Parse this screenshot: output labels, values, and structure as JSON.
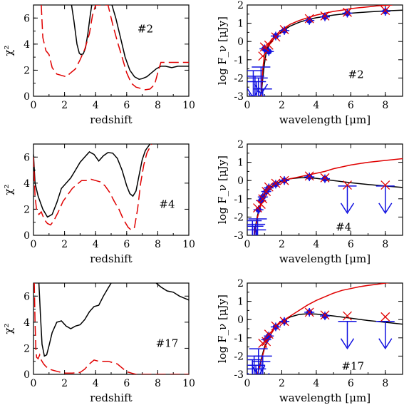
{
  "chart_data": [
    {
      "type": "line",
      "panel": "top-left",
      "object_label": "#2",
      "xlabel": "redshift",
      "ylabel": "χ²",
      "xlim": [
        0,
        10
      ],
      "ylim": [
        0,
        7
      ],
      "xticks": [
        0,
        2,
        4,
        6,
        8,
        10
      ],
      "yticks": [
        0,
        2,
        4,
        6
      ],
      "series": [
        {
          "color": "#000000",
          "style": "solid",
          "x": [
            2.45,
            2.6,
            2.8,
            2.95,
            3.05,
            3.2,
            3.35,
            3.5,
            3.65,
            3.75
          ],
          "y": [
            7.0,
            5.8,
            4.0,
            3.3,
            3.2,
            3.25,
            3.7,
            4.8,
            6.2,
            7.0
          ],
          "x2": [
            5.05,
            5.3,
            5.6,
            5.9,
            6.2,
            6.5,
            6.8,
            7.0,
            7.3,
            7.6,
            7.9,
            8.2,
            8.5,
            8.9,
            9.3,
            9.7,
            10.0
          ],
          "y2": [
            7.0,
            6.0,
            4.5,
            3.0,
            2.0,
            1.5,
            1.3,
            1.35,
            1.5,
            1.8,
            2.1,
            2.3,
            2.3,
            2.2,
            2.3,
            2.3,
            2.3
          ]
        },
        {
          "color": "#e00000",
          "style": "dashed",
          "x": [
            0.5,
            0.6,
            0.8,
            1.0,
            1.2,
            1.5,
            1.8,
            2.1,
            2.4,
            2.7,
            3.0,
            3.3,
            3.6,
            3.8,
            4.0,
            4.4,
            4.8,
            5.1,
            5.4,
            5.7,
            6.0,
            6.3,
            6.6,
            6.9,
            7.2,
            7.5,
            7.8,
            8.0,
            8.2,
            8.5,
            9.0,
            9.5,
            10.0
          ],
          "y": [
            7.0,
            4.5,
            3.5,
            3.2,
            2.2,
            1.7,
            1.6,
            1.5,
            1.8,
            2.1,
            2.8,
            3.6,
            4.8,
            6.2,
            7.0,
            7.0,
            7.0,
            5.5,
            4.2,
            3.0,
            1.8,
            1.0,
            0.7,
            0.6,
            0.5,
            0.55,
            0.9,
            1.8,
            2.6,
            2.6,
            2.6,
            2.6,
            2.6
          ]
        }
      ]
    },
    {
      "type": "scatter",
      "panel": "top-right",
      "object_label": "#2",
      "xlabel": "wavelength [μm]",
      "ylabel": "log F_ν [μJy]",
      "xlim": [
        0,
        9
      ],
      "ylim": [
        -3,
        2
      ],
      "xticks": [
        0,
        2,
        4,
        6,
        8
      ],
      "yticks": [
        -3,
        -2,
        -1,
        0,
        1,
        2
      ],
      "observed": {
        "x": [
          1.0,
          1.25,
          1.65,
          2.15,
          3.6,
          4.5,
          5.8,
          8.0
        ],
        "y": [
          -0.4,
          -0.55,
          0.3,
          0.6,
          1.15,
          1.35,
          1.55,
          1.65
        ]
      },
      "upper_limits": {
        "x": [
          0.35,
          0.45,
          0.55,
          0.65,
          0.8,
          0.9
        ],
        "y": [
          -1.6,
          -1.9,
          -2.2,
          -2.0,
          -1.4,
          -2.6
        ]
      },
      "model_points": {
        "x": [
          0.9,
          1.0,
          1.25,
          1.65,
          2.15,
          3.6,
          4.5,
          5.8,
          8.0
        ],
        "y": [
          -0.8,
          -0.3,
          -0.2,
          0.25,
          0.65,
          1.25,
          1.4,
          1.6,
          1.7
        ]
      },
      "series": [
        {
          "color": "#000000",
          "style": "solid",
          "x": [
            0.8,
            0.9,
            1.0,
            1.1,
            1.2,
            1.4,
            1.7,
            2.0,
            2.5,
            3.0,
            3.5,
            4.0,
            5.0,
            6.0,
            7.0,
            8.0,
            9.0
          ],
          "y": [
            -3.0,
            -2.0,
            -1.2,
            -0.6,
            -0.3,
            0.0,
            0.3,
            0.55,
            0.85,
            1.05,
            1.2,
            1.3,
            1.45,
            1.55,
            1.62,
            1.68,
            1.72
          ]
        },
        {
          "color": "#e00000",
          "style": "solid",
          "x": [
            0.8,
            0.9,
            1.0,
            1.1,
            1.2,
            1.4,
            1.7,
            2.0,
            2.5,
            3.0,
            3.5,
            4.0,
            4.5,
            5.0,
            5.5,
            6.0,
            6.5,
            7.0,
            7.5,
            8.0,
            8.4
          ],
          "y": [
            -3.0,
            -1.5,
            -0.7,
            -0.4,
            -0.2,
            0.1,
            0.4,
            0.65,
            0.95,
            1.15,
            1.3,
            1.45,
            1.55,
            1.65,
            1.72,
            1.8,
            1.85,
            1.9,
            1.95,
            1.98,
            2.0
          ]
        }
      ]
    },
    {
      "type": "line",
      "panel": "middle-left",
      "object_label": "#4",
      "xlabel": "redshift",
      "ylabel": "χ²",
      "xlim": [
        0,
        10
      ],
      "ylim": [
        0,
        7
      ],
      "xticks": [
        0,
        2,
        4,
        6,
        8,
        10
      ],
      "yticks": [
        0,
        2,
        4,
        6
      ],
      "series": [
        {
          "color": "#000000",
          "style": "solid",
          "x": [
            0.0,
            0.1,
            0.3,
            0.6,
            0.9,
            1.2,
            1.5,
            1.8,
            2.1,
            2.4,
            2.7,
            3.0,
            3.3,
            3.6,
            3.9,
            4.2,
            4.5,
            4.8,
            5.1,
            5.4,
            5.7,
            6.0,
            6.2,
            6.4,
            6.6,
            6.8,
            7.0,
            7.2,
            7.5
          ],
          "y": [
            6.2,
            4.0,
            3.0,
            2.0,
            1.4,
            1.6,
            2.5,
            3.6,
            4.0,
            4.4,
            5.0,
            5.6,
            6.0,
            6.4,
            6.2,
            5.7,
            6.1,
            6.35,
            6.3,
            5.9,
            5.0,
            3.8,
            3.2,
            3.0,
            3.4,
            4.6,
            5.8,
            6.5,
            7.0
          ]
        },
        {
          "color": "#e00000",
          "style": "dashed",
          "x": [
            0.0,
            0.1,
            0.2,
            0.35,
            0.5,
            0.7,
            0.9,
            1.1,
            1.3,
            1.6,
            1.9,
            2.2,
            2.5,
            2.8,
            3.1,
            3.4,
            3.7,
            4.0,
            4.3,
            4.6,
            4.9,
            5.2,
            5.5,
            5.8,
            6.1,
            6.3,
            6.5,
            6.7,
            6.9,
            7.1,
            7.3,
            7.6
          ],
          "y": [
            6.0,
            3.0,
            1.9,
            1.6,
            1.8,
            1.2,
            0.9,
            0.8,
            1.1,
            1.8,
            2.6,
            3.1,
            3.6,
            3.9,
            4.2,
            4.2,
            4.3,
            4.2,
            4.1,
            3.8,
            3.3,
            2.6,
            2.0,
            1.2,
            0.6,
            0.4,
            0.6,
            2.0,
            4.0,
            5.4,
            6.3,
            7.0
          ]
        }
      ]
    },
    {
      "type": "scatter",
      "panel": "middle-right",
      "object_label": "#4",
      "xlabel": "wavelength [μm]",
      "ylabel": "log F_ν [μJy]",
      "xlim": [
        0,
        9
      ],
      "ylim": [
        -3,
        2
      ],
      "xticks": [
        0,
        2,
        4,
        6,
        8
      ],
      "yticks": [
        -3,
        -2,
        -1,
        0,
        1,
        2
      ],
      "observed": {
        "x": [
          0.65,
          0.8,
          0.9,
          1.1,
          1.25,
          1.65,
          2.15,
          3.6,
          4.5
        ],
        "y": [
          -1.6,
          -1.1,
          -0.9,
          -0.6,
          -0.4,
          -0.2,
          0.0,
          0.2,
          0.1
        ]
      },
      "upper_limits": {
        "x": [
          0.3,
          0.4,
          0.5,
          0.55,
          0.6,
          5.8,
          8.0
        ],
        "y": [
          -2.2,
          -2.5,
          -2.4,
          -2.7,
          -2.1,
          -0.3,
          -0.3
        ]
      },
      "model_points": {
        "x": [
          0.6,
          0.8,
          0.9,
          1.1,
          1.25,
          1.65,
          2.15,
          3.6,
          4.5,
          5.8,
          8.0
        ],
        "y": [
          -1.5,
          -1.3,
          -1.0,
          -0.6,
          -0.35,
          -0.15,
          0.0,
          0.25,
          0.15,
          -0.25,
          -0.25
        ]
      },
      "series": [
        {
          "color": "#000000",
          "style": "solid",
          "x": [
            0.4,
            0.5,
            0.6,
            0.8,
            1.0,
            1.3,
            1.6,
            2.0,
            2.5,
            3.0,
            3.5,
            4.0,
            5.0,
            6.0,
            7.0,
            8.0,
            9.0
          ],
          "y": [
            -3.0,
            -2.4,
            -1.9,
            -1.2,
            -0.75,
            -0.4,
            -0.2,
            -0.02,
            0.1,
            0.15,
            0.16,
            0.12,
            0.0,
            -0.12,
            -0.22,
            -0.3,
            -0.38
          ]
        },
        {
          "color": "#e00000",
          "style": "solid",
          "x": [
            0.4,
            0.5,
            0.6,
            0.8,
            1.0,
            1.3,
            1.6,
            2.0,
            2.5,
            3.0,
            3.5,
            4.0,
            4.5,
            5.0,
            6.0,
            7.0,
            8.0,
            9.0
          ],
          "y": [
            -3.0,
            -2.5,
            -2.0,
            -1.3,
            -0.8,
            -0.45,
            -0.25,
            -0.05,
            0.1,
            0.2,
            0.3,
            0.4,
            0.5,
            0.65,
            0.85,
            1.0,
            1.1,
            1.2
          ]
        }
      ]
    },
    {
      "type": "line",
      "panel": "bottom-left",
      "object_label": "#17",
      "xlabel": "redshift",
      "ylabel": "χ²",
      "xlim": [
        0,
        10
      ],
      "ylim": [
        0,
        7
      ],
      "xticks": [
        0,
        2,
        4,
        6,
        8,
        10
      ],
      "yticks": [
        0,
        2,
        4,
        6
      ],
      "series": [
        {
          "color": "#000000",
          "style": "solid",
          "x": [
            0.35,
            0.45,
            0.55,
            0.7,
            0.85,
            1.0,
            1.2,
            1.5,
            1.8,
            2.1,
            2.4,
            2.7,
            3.0,
            3.3,
            3.6,
            3.9,
            4.2,
            4.5,
            4.8,
            5.0
          ],
          "y": [
            7.0,
            4.5,
            2.3,
            1.4,
            1.5,
            2.2,
            3.2,
            4.0,
            4.1,
            3.7,
            3.5,
            3.7,
            3.8,
            4.2,
            4.8,
            5.2,
            5.3,
            6.0,
            6.6,
            7.0
          ],
          "x2": [
            7.9,
            8.2,
            8.6,
            9.0,
            9.4,
            9.8,
            10.0
          ],
          "y2": [
            7.0,
            6.7,
            6.4,
            6.3,
            6.0,
            5.8,
            5.7
          ]
        },
        {
          "color": "#e00000",
          "style": "dashed",
          "x": [
            0.05,
            0.1,
            0.15,
            0.2,
            0.3,
            0.4,
            0.5,
            0.65,
            0.8,
            1.0,
            1.3,
            1.6,
            2.0,
            2.5,
            3.0,
            3.3,
            3.6,
            3.9,
            4.2,
            4.5,
            4.8,
            5.1,
            5.4,
            5.7,
            6.0,
            6.3,
            6.6,
            7.0,
            8.0,
            9.0,
            10.0
          ],
          "y": [
            7.0,
            4.0,
            2.0,
            1.3,
            1.2,
            1.5,
            1.1,
            0.8,
            0.6,
            0.4,
            0.3,
            0.2,
            0.1,
            0.1,
            0.15,
            0.4,
            0.8,
            1.1,
            1.0,
            1.0,
            1.0,
            0.9,
            0.8,
            0.5,
            0.2,
            0.1,
            0.0,
            0.0,
            0.0,
            0.0,
            0.0
          ]
        }
      ]
    },
    {
      "type": "scatter",
      "panel": "bottom-right",
      "object_label": "#17",
      "xlabel": "wavelength [μm]",
      "ylabel": "log F_ν [μJy]",
      "xlim": [
        0,
        9
      ],
      "ylim": [
        -3,
        2
      ],
      "xticks": [
        0,
        2,
        4,
        6,
        8
      ],
      "yticks": [
        -3,
        -2,
        -1,
        0,
        1,
        2
      ],
      "observed": {
        "x": [
          1.1,
          1.25,
          1.65,
          2.15,
          3.6,
          4.5
        ],
        "y": [
          -1.1,
          -0.9,
          -0.4,
          -0.1,
          0.4,
          0.2
        ]
      },
      "upper_limits": {
        "x": [
          0.3,
          0.4,
          0.5,
          0.55,
          0.65,
          0.8,
          0.9,
          5.8,
          8.0
        ],
        "y": [
          -2.2,
          -2.0,
          -2.5,
          -2.7,
          -1.6,
          -2.3,
          -2.0,
          -0.1,
          -0.1
        ]
      },
      "model_points": {
        "x": [
          0.9,
          1.1,
          1.25,
          1.65,
          2.15,
          3.6,
          4.5,
          5.8,
          8.0
        ],
        "y": [
          -1.3,
          -1.2,
          -0.8,
          -0.35,
          -0.1,
          0.4,
          0.25,
          0.2,
          0.15
        ]
      },
      "series": [
        {
          "color": "#000000",
          "style": "solid",
          "x": [
            0.6,
            0.8,
            1.0,
            1.3,
            1.6,
            2.0,
            2.5,
            3.0,
            3.5,
            4.0,
            5.0,
            6.0,
            7.0,
            8.0,
            9.0
          ],
          "y": [
            -3.0,
            -2.2,
            -1.5,
            -0.9,
            -0.45,
            -0.1,
            0.15,
            0.28,
            0.32,
            0.3,
            0.2,
            0.08,
            -0.05,
            -0.15,
            -0.25
          ]
        },
        {
          "color": "#e00000",
          "style": "solid",
          "x": [
            0.6,
            0.8,
            1.0,
            1.3,
            1.6,
            2.0,
            2.5,
            3.0,
            3.5,
            4.0,
            4.5,
            5.0,
            5.5,
            6.0,
            6.5,
            7.0,
            7.5,
            8.0,
            8.5
          ],
          "y": [
            -3.0,
            -2.3,
            -1.6,
            -0.9,
            -0.45,
            -0.1,
            0.2,
            0.5,
            0.8,
            1.05,
            1.25,
            1.45,
            1.6,
            1.7,
            1.8,
            1.87,
            1.93,
            2.0,
            2.05
          ]
        }
      ]
    }
  ],
  "colors": {
    "model_fit": "#000000",
    "alt_fit": "#e00000",
    "observed": "#1010e0",
    "upper_limit": "#1010e0",
    "model_cross": "#e00000"
  }
}
